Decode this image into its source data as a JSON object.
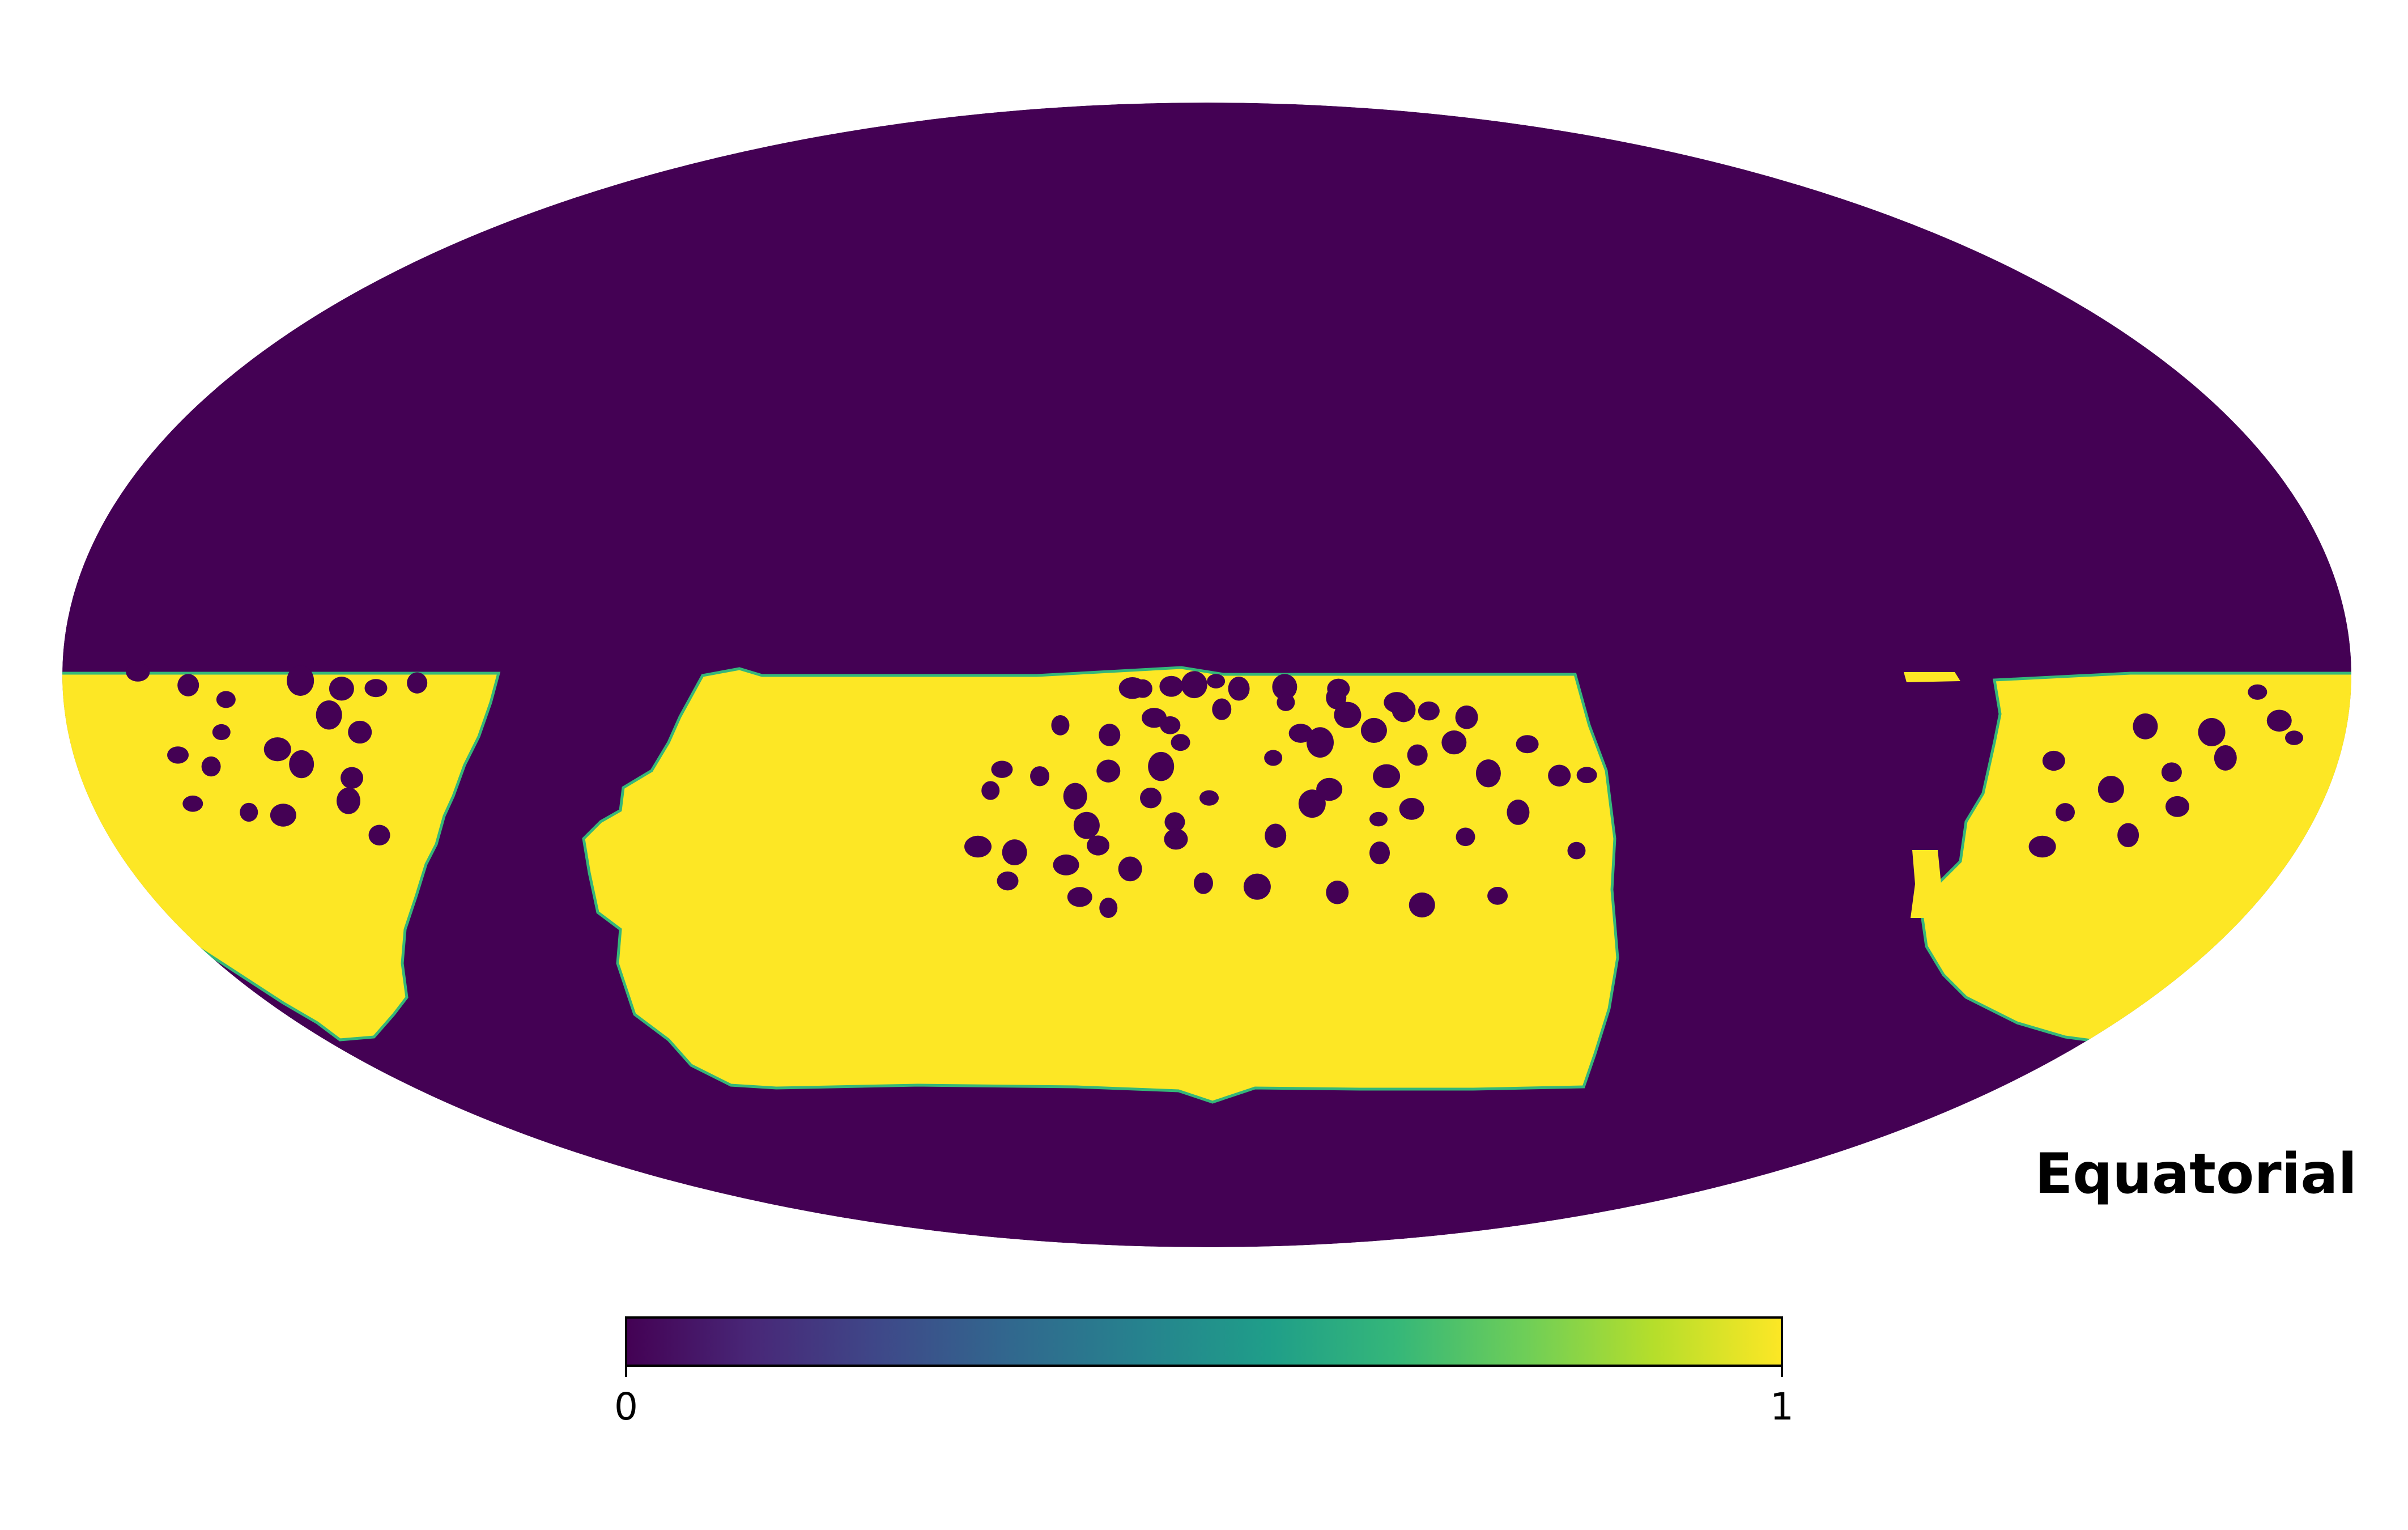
{
  "map": {
    "projection": "mollweide",
    "coordinate_system_label": "Equatorial",
    "mask_value_outside": 0,
    "mask_value_inside": 1
  },
  "colorbar": {
    "colormap": "viridis",
    "min_label": "0",
    "max_label": "1",
    "stops": [
      "#440154",
      "#482878",
      "#3e4989",
      "#31688e",
      "#26828e",
      "#1f9e89",
      "#35b779",
      "#6ece58",
      "#b5de2b",
      "#fde725"
    ]
  },
  "colors": {
    "masked": "#440154",
    "observed": "#fde725",
    "edge": "#35b779"
  },
  "holes": [
    [
      0.008,
      0.011
    ],
    [
      -0.011,
      0.017
    ],
    [
      -0.031,
      0.02
    ],
    [
      0.028,
      0.024
    ],
    [
      -0.056,
      0.024
    ],
    [
      -0.065,
      0.023
    ],
    [
      0.068,
      0.021
    ],
    [
      0.115,
      0.024
    ],
    [
      0.113,
      0.04
    ],
    [
      0.069,
      0.048
    ],
    [
      0.166,
      0.048
    ],
    [
      0.172,
      0.061
    ],
    [
      0.194,
      0.063
    ],
    [
      0.013,
      0.06
    ],
    [
      0.123,
      0.07
    ],
    [
      -0.046,
      0.075
    ],
    [
      0.227,
      0.074
    ],
    [
      -0.032,
      0.088
    ],
    [
      -0.128,
      0.088
    ],
    [
      0.146,
      0.097
    ],
    [
      0.082,
      0.102
    ],
    [
      -0.085,
      0.105
    ],
    [
      -0.023,
      0.118
    ],
    [
      0.099,
      0.118
    ],
    [
      0.216,
      0.118
    ],
    [
      0.28,
      0.121
    ],
    [
      0.184,
      0.14
    ],
    [
      0.058,
      0.145
    ],
    [
      -0.04,
      0.16
    ],
    [
      -0.086,
      0.168
    ],
    [
      -0.179,
      0.165
    ],
    [
      -0.146,
      0.177
    ],
    [
      0.157,
      0.177
    ],
    [
      0.246,
      0.172
    ],
    [
      0.308,
      0.176
    ],
    [
      0.332,
      0.175
    ],
    [
      -0.189,
      0.202
    ],
    [
      0.107,
      0.2
    ],
    [
      -0.115,
      0.212
    ],
    [
      -0.049,
      0.215
    ],
    [
      0.002,
      0.215
    ],
    [
      0.092,
      0.225
    ],
    [
      0.179,
      0.234
    ],
    [
      0.272,
      0.24
    ],
    [
      -0.028,
      0.257
    ],
    [
      0.15,
      0.252
    ],
    [
      -0.105,
      0.263
    ],
    [
      -0.027,
      0.287
    ],
    [
      0.06,
      0.281
    ],
    [
      0.226,
      0.283
    ],
    [
      -0.2,
      0.3
    ],
    [
      -0.168,
      0.31
    ],
    [
      -0.095,
      0.298
    ],
    [
      0.151,
      0.311
    ],
    [
      0.323,
      0.307
    ],
    [
      -0.123,
      0.332
    ],
    [
      -0.067,
      0.339
    ],
    [
      -0.174,
      0.36
    ],
    [
      -0.003,
      0.364
    ],
    [
      0.044,
      0.37
    ],
    [
      -0.111,
      0.388
    ],
    [
      0.114,
      0.38
    ],
    [
      0.254,
      0.386
    ],
    [
      -0.086,
      0.407
    ],
    [
      0.188,
      0.402
    ],
    [
      -0.934,
      -0.005
    ],
    [
      -0.89,
      0.018
    ],
    [
      -0.857,
      0.043
    ],
    [
      -0.792,
      0.01
    ],
    [
      -0.756,
      0.024
    ],
    [
      -0.726,
      0.023
    ],
    [
      -0.69,
      0.014
    ],
    [
      -0.861,
      0.1
    ],
    [
      -0.767,
      0.07
    ],
    [
      -0.74,
      0.1
    ],
    [
      -0.899,
      0.14
    ],
    [
      -0.87,
      0.16
    ],
    [
      -0.812,
      0.13
    ],
    [
      -0.791,
      0.156
    ],
    [
      -0.747,
      0.18
    ],
    [
      -0.886,
      0.225
    ],
    [
      -0.837,
      0.24
    ],
    [
      -0.807,
      0.245
    ],
    [
      -0.75,
      0.22
    ],
    [
      -0.723,
      0.28
    ],
    [
      0.918,
      0.03
    ],
    [
      0.878,
      0.1
    ],
    [
      0.937,
      0.08
    ],
    [
      0.89,
      0.145
    ],
    [
      0.843,
      0.17
    ],
    [
      0.95,
      0.11
    ],
    [
      0.79,
      0.2
    ],
    [
      0.848,
      0.23
    ],
    [
      0.805,
      0.28
    ],
    [
      0.75,
      0.24
    ],
    [
      0.73,
      0.3
    ],
    [
      0.82,
      0.09
    ],
    [
      0.74,
      0.15
    ]
  ]
}
